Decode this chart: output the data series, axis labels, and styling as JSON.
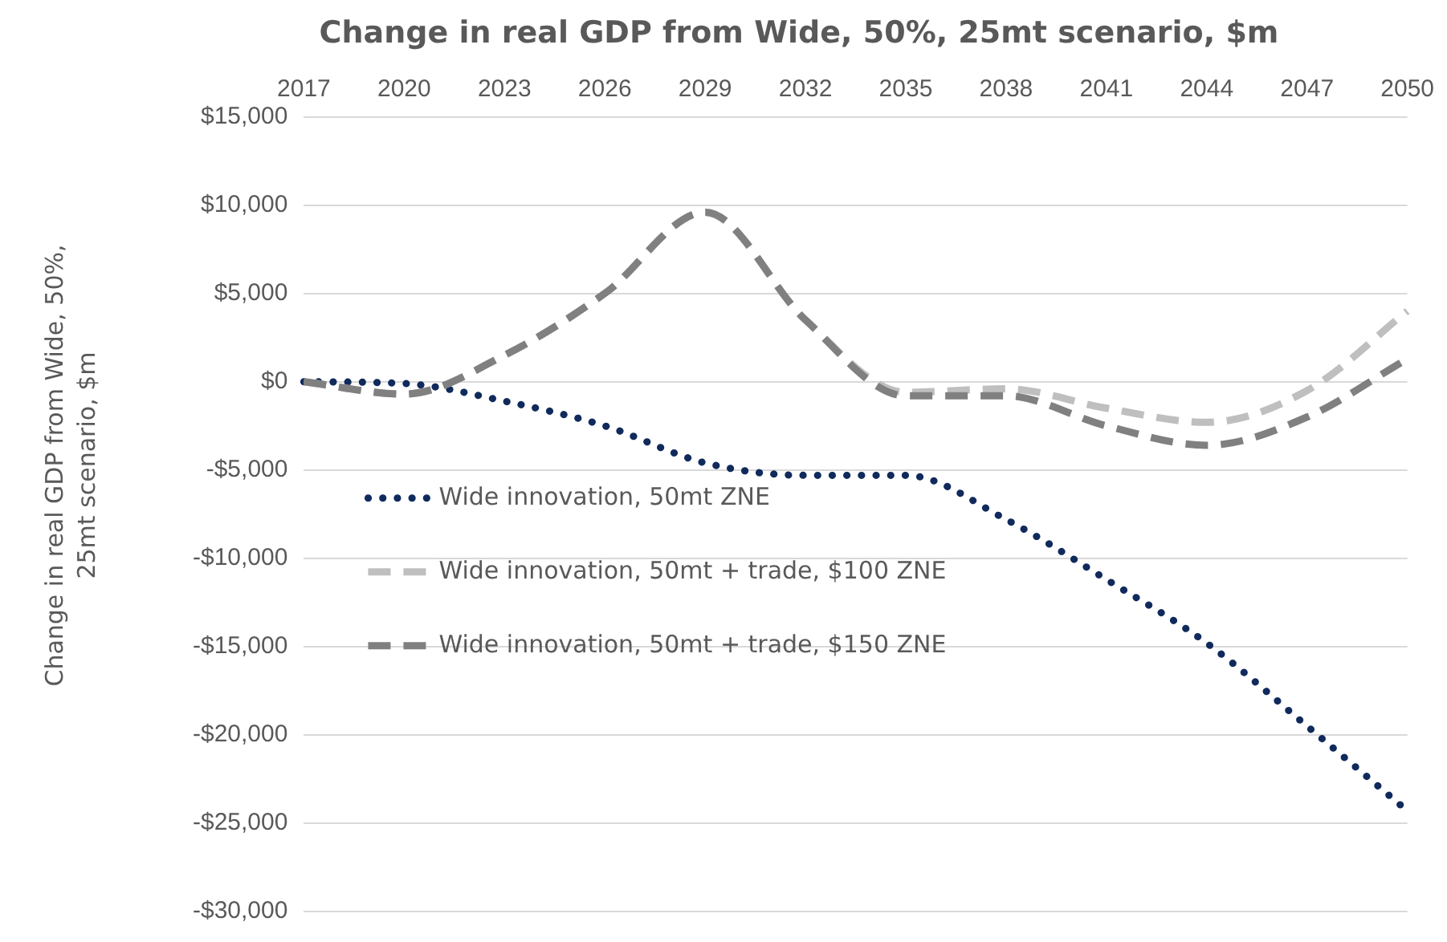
{
  "chart_data": {
    "type": "line",
    "title": "Change in real GDP from Wide, 50%, 25mt scenario, $m",
    "ylabel": "Change in real GDP from Wide, 50%, 25mt scenario, $m",
    "categories": [
      "2017",
      "2020",
      "2023",
      "2026",
      "2029",
      "2032",
      "2035",
      "2038",
      "2041",
      "2044",
      "2047",
      "2050"
    ],
    "series": [
      {
        "name": "Wide innovation, 50mt ZNE",
        "color": "#102a5c",
        "line_style": "dotted",
        "values": [
          0,
          -100,
          -1100,
          -2500,
          -4600,
          -5300,
          -5300,
          -7800,
          -11200,
          -14800,
          -19500,
          -24300
        ]
      },
      {
        "name": "Wide innovation, 50mt + trade, $100 ZNE",
        "color": "#bfbfbf",
        "line_style": "dashed",
        "values": [
          0,
          -700,
          1500,
          5000,
          9600,
          3500,
          -600,
          -400,
          -1500,
          -2300,
          -500,
          4000
        ]
      },
      {
        "name": "Wide innovation, 50mt + trade, $150 ZNE",
        "color": "#808080",
        "line_style": "dashed",
        "values": [
          0,
          -700,
          1500,
          5000,
          9600,
          3500,
          -800,
          -800,
          -2500,
          -3600,
          -2000,
          1300
        ]
      }
    ],
    "ylim": [
      -30000,
      15000
    ],
    "yticks": [
      {
        "value": -30000,
        "label": "-$30,000"
      },
      {
        "value": -25000,
        "label": "-$25,000"
      },
      {
        "value": -20000,
        "label": "-$20,000"
      },
      {
        "value": -15000,
        "label": "-$15,000"
      },
      {
        "value": -10000,
        "label": "-$10,000"
      },
      {
        "value": -5000,
        "label": "-$5,000"
      },
      {
        "value": 0,
        "label": "$0"
      },
      {
        "value": 5000,
        "label": "$5,000"
      },
      {
        "value": 10000,
        "label": "$10,000"
      },
      {
        "value": 15000,
        "label": "$15,000"
      }
    ],
    "grid": "y",
    "legend": "left",
    "marker": "none"
  }
}
